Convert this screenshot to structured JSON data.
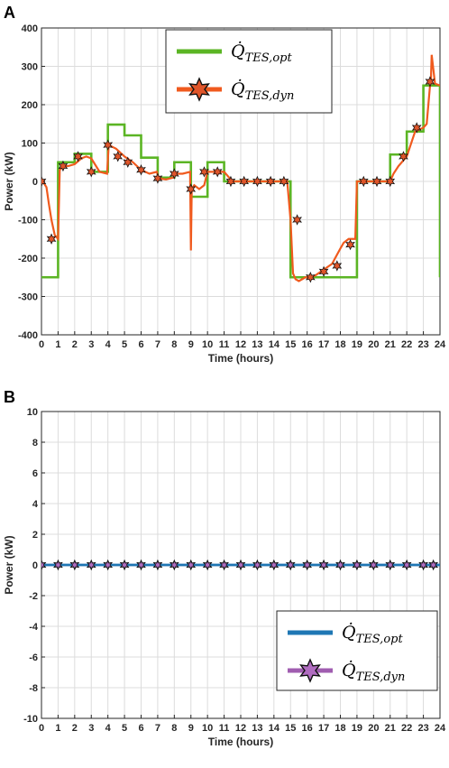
{
  "chart_data": [
    {
      "type": "line",
      "panel_label": "A",
      "xlabel": "Time (hours)",
      "ylabel": "Power (kW)",
      "xlim": [
        0,
        24
      ],
      "ylim": [
        -400,
        400
      ],
      "x_ticks": [
        0,
        1,
        2,
        3,
        4,
        5,
        6,
        7,
        8,
        9,
        10,
        11,
        12,
        13,
        14,
        15,
        16,
        17,
        18,
        19,
        20,
        21,
        22,
        23,
        24
      ],
      "y_ticks": [
        -400,
        -300,
        -200,
        -100,
        0,
        100,
        200,
        300,
        400
      ],
      "grid": true,
      "legend_position": "top-center",
      "series": [
        {
          "name": "Q̇TES,opt",
          "legend_main": "Q̇",
          "legend_sub": "TES,opt",
          "color": "#5bb524",
          "marker": "none",
          "step": true,
          "x": [
            0,
            1,
            2,
            3,
            4,
            5,
            6,
            7,
            8,
            9,
            10,
            11,
            12,
            13,
            14,
            15,
            16,
            17,
            18,
            19,
            20,
            21,
            22,
            23,
            24
          ],
          "y": [
            -250,
            50,
            72,
            25,
            148,
            120,
            62,
            10,
            50,
            -40,
            50,
            0,
            0,
            0,
            0,
            -250,
            -250,
            -250,
            -250,
            0,
            0,
            70,
            130,
            250,
            -250
          ]
        },
        {
          "name": "Q̇TES,dyn",
          "legend_main": "Q̇",
          "legend_sub": "TES,dyn",
          "color": "#f05a1e",
          "marker": "hexagram",
          "marker_fill": "#e0552a",
          "x": [
            0,
            0.15,
            0.3,
            0.45,
            0.6,
            0.8,
            1,
            1.1,
            1.3,
            1.6,
            2,
            2.4,
            2.7,
            3,
            3.5,
            3.95,
            4.05,
            4.5,
            5,
            5.5,
            6,
            6.5,
            6.95,
            7.05,
            7.5,
            7.95,
            8.05,
            8.5,
            8.95,
            9.0,
            9.05,
            9.2,
            9.5,
            9.8,
            10,
            10.5,
            11,
            11.5,
            12,
            13,
            14,
            14.8,
            15,
            15.15,
            15.3,
            15.5,
            15.7,
            15.9,
            16.2,
            16.5,
            17,
            17.5,
            18,
            18.2,
            18.5,
            18.9,
            19,
            19.5,
            20,
            21,
            21.2,
            21.5,
            22,
            22.5,
            23,
            23.2,
            23.4,
            23.45,
            23.5,
            23.7,
            24
          ],
          "y": [
            0,
            -5,
            -15,
            -60,
            -100,
            -140,
            -150,
            30,
            40,
            40,
            45,
            60,
            65,
            60,
            25,
            20,
            95,
            85,
            65,
            50,
            30,
            20,
            25,
            8,
            5,
            10,
            20,
            20,
            25,
            -180,
            -20,
            -10,
            -20,
            -10,
            25,
            25,
            25,
            0,
            0,
            0,
            0,
            0,
            -100,
            -240,
            -255,
            -260,
            -255,
            -250,
            -250,
            -245,
            -230,
            -215,
            -175,
            -160,
            -150,
            -150,
            0,
            0,
            0,
            0,
            20,
            40,
            65,
            130,
            140,
            150,
            250,
            260,
            330,
            255,
            250
          ]
        }
      ],
      "dyn_markers": {
        "x": [
          0,
          0.6,
          1.3,
          2.2,
          3,
          4,
          4.6,
          5.2,
          6,
          7,
          8,
          9,
          9.8,
          10.6,
          11.4,
          12.2,
          13,
          13.8,
          14.6,
          15.4,
          16.2,
          17,
          17.8,
          18.6,
          19.4,
          20.2,
          21,
          21.8,
          22.6,
          23.4
        ],
        "y": [
          0,
          -150,
          40,
          65,
          25,
          95,
          65,
          50,
          30,
          8,
          20,
          -20,
          25,
          25,
          0,
          0,
          0,
          0,
          0,
          -100,
          -250,
          -235,
          -220,
          -165,
          0,
          0,
          0,
          65,
          140,
          260
        ]
      }
    },
    {
      "type": "line",
      "panel_label": "B",
      "xlabel": "Time (hours)",
      "ylabel": "Power (kW)",
      "xlim": [
        0,
        24
      ],
      "ylim": [
        -10,
        10
      ],
      "x_ticks": [
        0,
        1,
        2,
        3,
        4,
        5,
        6,
        7,
        8,
        9,
        10,
        11,
        12,
        13,
        14,
        15,
        16,
        17,
        18,
        19,
        20,
        21,
        22,
        23,
        24
      ],
      "y_ticks": [
        -10,
        -8,
        -6,
        -4,
        -2,
        0,
        2,
        4,
        6,
        8,
        10
      ],
      "grid": true,
      "legend_position": "bottom-right",
      "series": [
        {
          "name": "Q̇TES,opt",
          "legend_main": "Q̇",
          "legend_sub": "TES,opt",
          "color": "#1f77b4",
          "marker": "none",
          "x": [
            0,
            24
          ],
          "y": [
            0,
            0
          ]
        },
        {
          "name": "Q̇TES,dyn",
          "legend_main": "Q̇",
          "legend_sub": "TES,dyn",
          "color": "#a05db0",
          "marker": "hexagram",
          "marker_fill": "#b06cc0",
          "x": [
            0,
            24
          ],
          "y": [
            0,
            0
          ]
        }
      ],
      "dyn_markers": {
        "x": [
          0,
          1,
          2,
          3,
          4,
          5,
          6,
          7,
          8,
          9,
          10,
          11,
          12,
          13,
          14,
          15,
          16,
          17,
          18,
          19,
          20,
          21,
          22,
          23,
          23.6
        ],
        "y": [
          0,
          0,
          0,
          0,
          0,
          0,
          0,
          0,
          0,
          0,
          0,
          0,
          0,
          0,
          0,
          0,
          0,
          0,
          0,
          0,
          0,
          0,
          0,
          0,
          0
        ]
      }
    }
  ]
}
